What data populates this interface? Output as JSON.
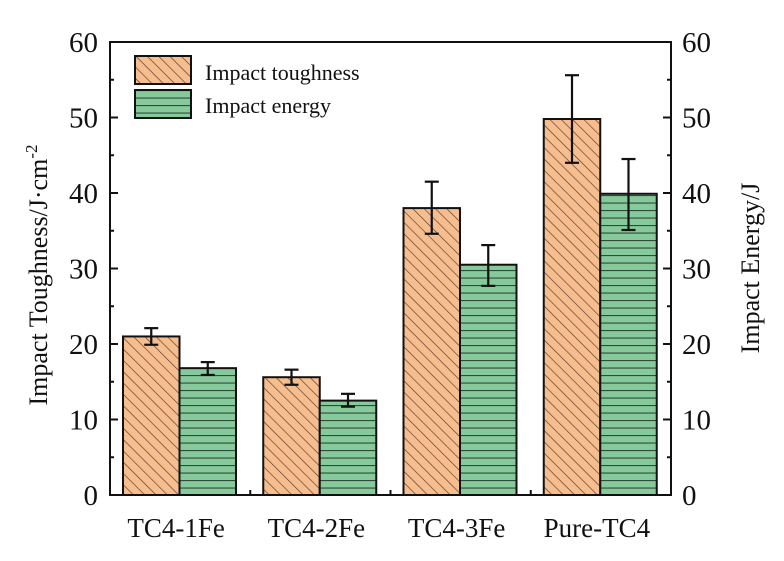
{
  "chart_data": {
    "type": "bar",
    "title": "",
    "categories": [
      "TC4-1Fe",
      "TC4-2Fe",
      "TC4-3Fe",
      "Pure-TC4"
    ],
    "series": [
      {
        "name": "Impact toughness",
        "axis": "left",
        "values": [
          21.0,
          15.6,
          38.0,
          49.8
        ],
        "error_low": [
          19.9,
          14.6,
          34.6,
          44.0
        ],
        "error_high": [
          22.1,
          16.6,
          41.5,
          55.6
        ],
        "color": "#f6bd8f",
        "pattern": "diagonal-hatch"
      },
      {
        "name": "Impact energy",
        "axis": "right",
        "values": [
          16.8,
          12.5,
          30.5,
          39.9
        ],
        "error_low": [
          15.9,
          11.7,
          27.7,
          35.1
        ],
        "error_high": [
          17.6,
          13.4,
          33.1,
          44.5
        ],
        "color": "#86c99b",
        "pattern": "horizontal-lines"
      }
    ],
    "ylabel": "Impact Toughness/J·cm",
    "ylabel_superscript": "-2",
    "y2label": "Impact Energy/J",
    "xlabel": "",
    "ylim": [
      0,
      60
    ],
    "y2lim": [
      0,
      60
    ],
    "yticks": [
      0,
      10,
      20,
      30,
      40,
      50,
      60
    ],
    "y2ticks": [
      0,
      10,
      20,
      30,
      40,
      50,
      60
    ],
    "grid": false,
    "legend_position": "top-left"
  }
}
